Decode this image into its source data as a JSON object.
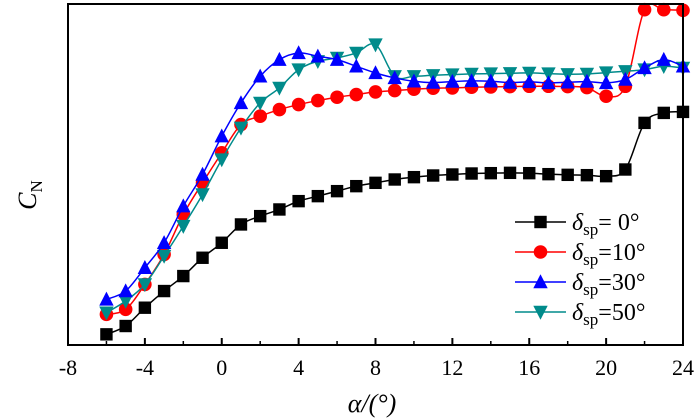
{
  "chart_data": {
    "type": "line",
    "title": "",
    "xlabel": "α/(°)",
    "ylabel": "C_N",
    "ylabel_main": "C",
    "ylabel_sub": "N",
    "xlim": [
      -8,
      24
    ],
    "ylim": [
      0,
      100
    ],
    "xticks": [
      -8,
      -4,
      0,
      4,
      8,
      12,
      16,
      20,
      24
    ],
    "yticks_labeled": false,
    "grid": false,
    "legend_position": "bottom-right",
    "series": [
      {
        "name": "δsp= 0°",
        "label_symbol": "δ",
        "label_sub": "sp",
        "label_value": "=  0°",
        "color": "#000000",
        "marker": "square",
        "x": [
          -6,
          -5,
          -4,
          -3,
          -2,
          -1,
          0,
          1,
          2,
          3,
          4,
          5,
          6,
          7,
          8,
          9,
          10,
          11,
          12,
          13,
          14,
          15,
          16,
          17,
          18,
          19,
          20,
          21,
          22,
          23,
          24
        ],
        "y": [
          2.0,
          4.5,
          10.0,
          15.0,
          19.5,
          25.0,
          29.5,
          35.0,
          37.5,
          39.5,
          42.0,
          43.5,
          45.0,
          46.5,
          47.5,
          48.5,
          49.2,
          49.7,
          50.0,
          50.3,
          50.4,
          50.5,
          50.4,
          50.1,
          49.9,
          49.8,
          49.5,
          51.5,
          65.5,
          68.5,
          68.8
        ]
      },
      {
        "name": "δsp=10°",
        "label_symbol": "δ",
        "label_sub": "sp",
        "label_value": "=10°",
        "color": "#ff0000",
        "marker": "circle",
        "x": [
          -6,
          -5,
          -4,
          -3,
          -2,
          -1,
          0,
          1,
          2,
          3,
          4,
          5,
          6,
          7,
          8,
          9,
          10,
          11,
          12,
          13,
          14,
          15,
          16,
          17,
          18,
          19,
          20,
          21,
          22,
          23,
          24
        ],
        "y": [
          8.0,
          9.5,
          17.0,
          26.0,
          38.0,
          47.5,
          56.5,
          65.0,
          67.5,
          69.5,
          71.0,
          72.2,
          73.2,
          74.0,
          74.8,
          75.2,
          75.6,
          75.9,
          76.0,
          76.2,
          76.3,
          76.4,
          76.5,
          76.5,
          76.4,
          76.1,
          73.5,
          76.5,
          99.5,
          99.5,
          99.3
        ]
      },
      {
        "name": "δsp=30°",
        "label_symbol": "δ",
        "label_sub": "sp",
        "label_value": "=30°",
        "color": "#0000ff",
        "marker": "triangle-up",
        "x": [
          -6,
          -5,
          -4,
          -3,
          -2,
          -1,
          0,
          1,
          2,
          3,
          4,
          5,
          6,
          7,
          8,
          9,
          10,
          11,
          12,
          13,
          14,
          15,
          16,
          17,
          18,
          19,
          20,
          21,
          22,
          23,
          24
        ],
        "y": [
          12.5,
          15.0,
          22.0,
          29.5,
          40.5,
          50.0,
          61.5,
          71.5,
          79.5,
          84.5,
          86.5,
          85.5,
          84.5,
          82.5,
          80.5,
          79.0,
          78.0,
          77.6,
          77.9,
          78.1,
          78.0,
          77.6,
          77.8,
          77.5,
          77.7,
          77.9,
          77.5,
          78.5,
          82.0,
          84.5,
          82.5
        ]
      },
      {
        "name": "δsp=50°",
        "label_symbol": "δ",
        "label_sub": "sp",
        "label_value": "=50°",
        "color": "#008b8b",
        "marker": "triangle-down",
        "x": [
          -6,
          -5,
          -4,
          -3,
          -2,
          -1,
          0,
          1,
          2,
          3,
          4,
          5,
          6,
          7,
          8,
          9,
          10,
          11,
          12,
          13,
          14,
          15,
          16,
          17,
          18,
          19,
          20,
          21,
          22,
          23,
          24
        ],
        "y": [
          8.5,
          12.0,
          17.0,
          25.5,
          34.5,
          44.0,
          54.5,
          64.0,
          71.5,
          76.0,
          81.5,
          84.0,
          85.0,
          86.5,
          89.0,
          79.5,
          79.5,
          79.8,
          80.0,
          80.2,
          80.3,
          80.4,
          80.5,
          80.3,
          80.1,
          80.2,
          80.6,
          81.0,
          81.5,
          82.5,
          82.0
        ]
      }
    ]
  }
}
